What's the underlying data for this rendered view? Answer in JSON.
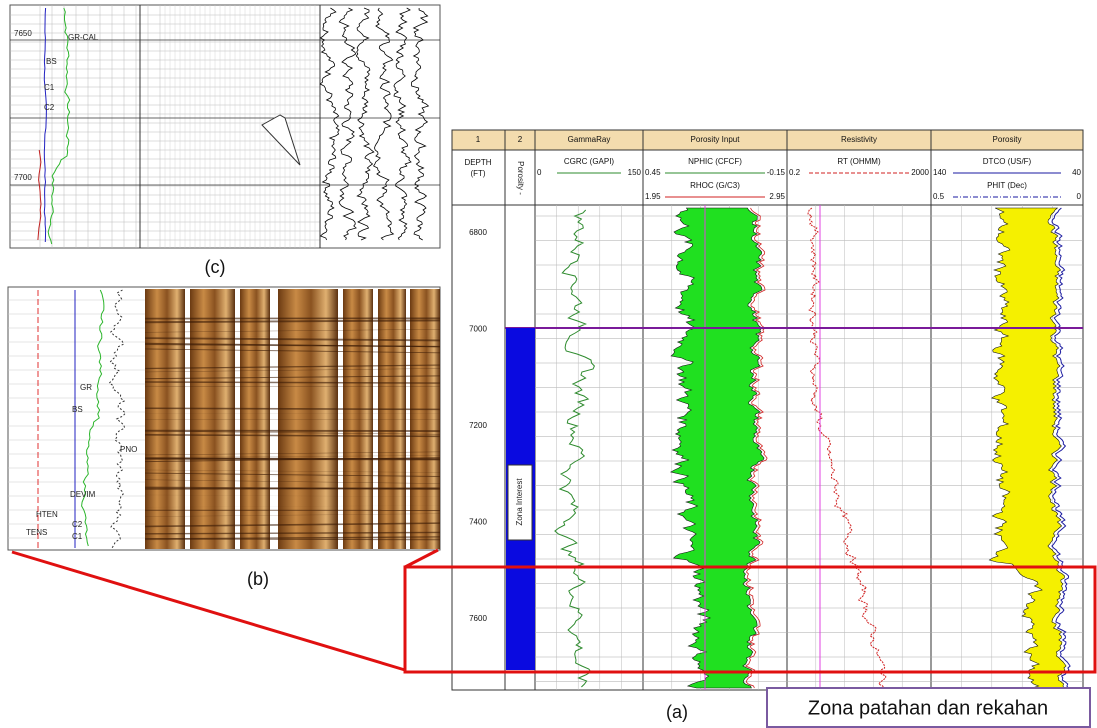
{
  "panel_c": {
    "label": "(c)",
    "depth_labels": [
      "7650",
      "7700"
    ],
    "curve_labels": [
      "GR-CAL",
      "BS",
      "C1",
      "C2"
    ]
  },
  "panel_b": {
    "label": "(b)",
    "curve_labels": [
      "GR",
      "BS",
      "DEVIM",
      "HTEN",
      "TENS",
      "C2",
      "C1",
      "PNO"
    ]
  },
  "panel_a": {
    "label": "(a)",
    "track_numbers": [
      "1",
      "2"
    ],
    "depth_header": [
      "DEPTH",
      "(FT)"
    ],
    "track2_header": "Porosity -",
    "zone_label": "Zona Interest",
    "tracks": [
      {
        "name": "GammaRay",
        "curves": [
          {
            "name": "CGRC (GAPI)",
            "min": "0",
            "max": "150",
            "color": "#2e8b2e"
          }
        ]
      },
      {
        "name": "Porosity Input",
        "curves": [
          {
            "name": "NPHIC (CFCF)",
            "min": "0.45",
            "max": "-0.15",
            "color": "#2e8b2e"
          },
          {
            "name": "RHOC (G/C3)",
            "min": "1.95",
            "max": "2.95",
            "color": "#d02020"
          }
        ]
      },
      {
        "name": "Resistivity",
        "curves": [
          {
            "name": "RT (OHMM)",
            "min": "0.2",
            "max": "2000",
            "color": "#d02020"
          }
        ]
      },
      {
        "name": "Porosity",
        "curves": [
          {
            "name": "DTCO (US/F)",
            "min": "140",
            "max": "40",
            "color": "#1a1aa0"
          },
          {
            "name": "PHIT (Dec)",
            "min": "0.5",
            "max": "0",
            "color": "#1a1aa0"
          }
        ]
      }
    ],
    "depths": [
      "6800",
      "7000",
      "7200",
      "7400",
      "7600"
    ]
  },
  "callout": "Zona patahan dan rekahan"
}
